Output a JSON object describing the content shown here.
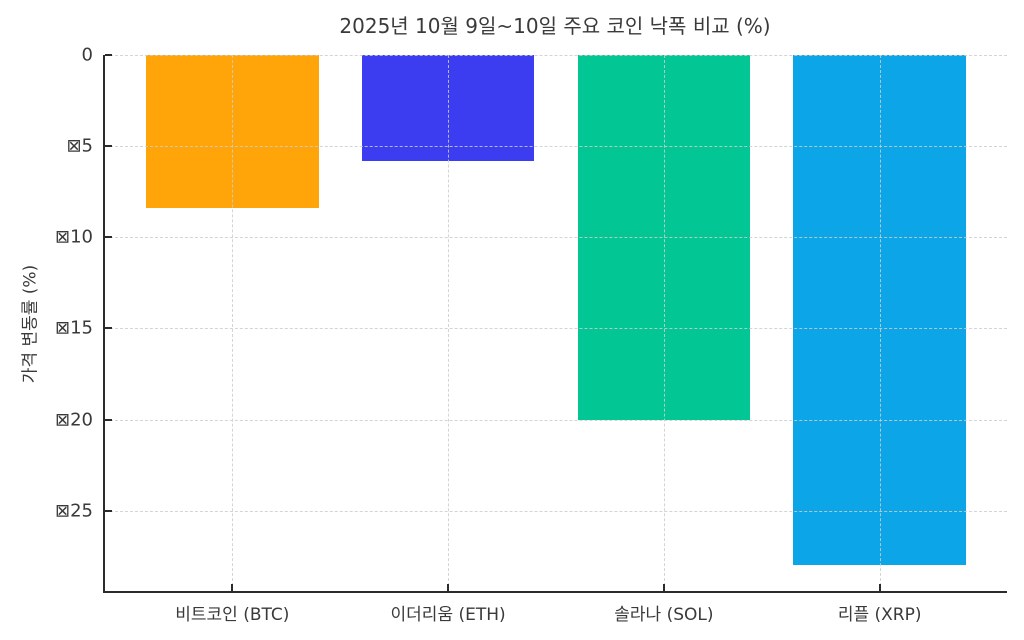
{
  "chart_data": {
    "type": "bar",
    "title": "2025년 10월 9일~10일 주요 코인 낙폭 비교 (%)",
    "xlabel": "",
    "ylabel": "가격 변동률 (%)",
    "categories": [
      "비트코인 (BTC)",
      "이더리움 (ETH)",
      "솔라나 (SOL)",
      "리플 (XRP)"
    ],
    "values": [
      -8.4,
      -5.8,
      -20.0,
      -28.0
    ],
    "bar_colors": [
      "#ffa50a",
      "#3c3cf0",
      "#02c795",
      "#0ca6e8"
    ],
    "yticks": [
      0,
      -5,
      -10,
      -15,
      -20,
      -25
    ],
    "ytick_labels": [
      "0",
      "⊠5",
      "⊠10",
      "⊠15",
      "⊠20",
      "⊠25"
    ],
    "ylim": [
      -29.4,
      0
    ],
    "xlim": [
      -0.59,
      3.59
    ],
    "bar_width": 0.8,
    "grid": "dashed, horizontal and vertical, drawn above bars",
    "legend": "none",
    "spines": "left and bottom only, ticks point inward",
    "note_rendering": "minus sign renders as missing-glyph crossed box before y tick numbers"
  },
  "style_colors": {
    "background": "#ffffff",
    "spine": "#2b2b2b",
    "grid": "#cdcdcd",
    "text": "#3a3a3a"
  }
}
